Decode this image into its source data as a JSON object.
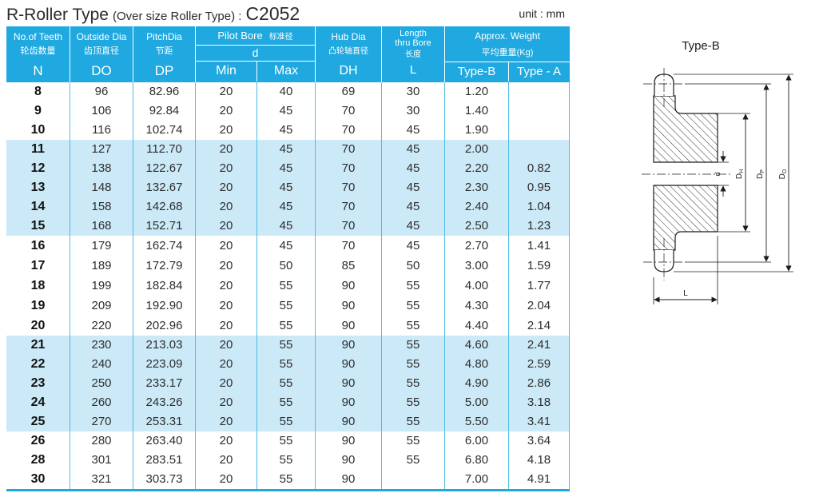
{
  "title": {
    "main": "R-Roller Type",
    "paren": "(Over size Roller Type) :",
    "code": "C2052",
    "unit": "unit : mm"
  },
  "colors": {
    "accent": "#1fa9e0",
    "grid_line": "#4dbce8",
    "row_shade": "#cbe9f7"
  },
  "table": {
    "column_keys": [
      "n",
      "do",
      "dp",
      "min",
      "max",
      "dh",
      "l",
      "type_b",
      "type_a"
    ],
    "headers": {
      "teeth": {
        "en": "No.of Teeth",
        "cn": "轮齿数量",
        "sym": "N"
      },
      "outside": {
        "en": "Outside Dia",
        "cn": "齿顶直径",
        "sym": "DO"
      },
      "pitch": {
        "en": "PitchDia",
        "cn": "节距",
        "sym": "DP"
      },
      "pilot": {
        "en": "Pilot Bore",
        "cn": "标准径",
        "sub": "d",
        "min": "Min",
        "max": "Max"
      },
      "hub": {
        "en": "Hub Dia",
        "cn": "凸轮轴直径",
        "sym": "DH"
      },
      "length": {
        "en1": "Length",
        "en2": "thru Bore",
        "cn": "长度",
        "sym": "L"
      },
      "weight": {
        "en": "Approx. Weight",
        "cn": "平均重量(Kg)",
        "type_b": "Type-B",
        "type_a": "Type - A"
      }
    },
    "groups": [
      {
        "shaded": false,
        "rows": [
          [
            "8",
            "96",
            "82.96",
            "20",
            "40",
            "69",
            "30",
            "1.20",
            ""
          ],
          [
            "9",
            "106",
            "92.84",
            "20",
            "45",
            "70",
            "30",
            "1.40",
            ""
          ],
          [
            "10",
            "116",
            "102.74",
            "20",
            "45",
            "70",
            "45",
            "1.90",
            ""
          ]
        ]
      },
      {
        "shaded": true,
        "rows": [
          [
            "11",
            "127",
            "112.70",
            "20",
            "45",
            "70",
            "45",
            "2.00",
            ""
          ],
          [
            "12",
            "138",
            "122.67",
            "20",
            "45",
            "70",
            "45",
            "2.20",
            "0.82"
          ],
          [
            "13",
            "148",
            "132.67",
            "20",
            "45",
            "70",
            "45",
            "2.30",
            "0.95"
          ],
          [
            "14",
            "158",
            "142.68",
            "20",
            "45",
            "70",
            "45",
            "2.40",
            "1.04"
          ],
          [
            "15",
            "168",
            "152.71",
            "20",
            "45",
            "70",
            "45",
            "2.50",
            "1.23"
          ]
        ]
      },
      {
        "shaded": false,
        "rows": [
          [
            "16",
            "179",
            "162.74",
            "20",
            "45",
            "70",
            "45",
            "2.70",
            "1.41"
          ],
          [
            "17",
            "189",
            "172.79",
            "20",
            "50",
            "85",
            "50",
            "3.00",
            "1.59"
          ],
          [
            "18",
            "199",
            "182.84",
            "20",
            "55",
            "90",
            "55",
            "4.00",
            "1.77"
          ],
          [
            "19",
            "209",
            "192.90",
            "20",
            "55",
            "90",
            "55",
            "4.30",
            "2.04"
          ],
          [
            "20",
            "220",
            "202.96",
            "20",
            "55",
            "90",
            "55",
            "4.40",
            "2.14"
          ]
        ]
      },
      {
        "shaded": true,
        "rows": [
          [
            "21",
            "230",
            "213.03",
            "20",
            "55",
            "90",
            "55",
            "4.60",
            "2.41"
          ],
          [
            "22",
            "240",
            "223.09",
            "20",
            "55",
            "90",
            "55",
            "4.80",
            "2.59"
          ],
          [
            "23",
            "250",
            "233.17",
            "20",
            "55",
            "90",
            "55",
            "4.90",
            "2.86"
          ],
          [
            "24",
            "260",
            "243.26",
            "20",
            "55",
            "90",
            "55",
            "5.00",
            "3.18"
          ],
          [
            "25",
            "270",
            "253.31",
            "20",
            "55",
            "90",
            "55",
            "5.50",
            "3.41"
          ]
        ]
      },
      {
        "shaded": false,
        "rows": [
          [
            "26",
            "280",
            "263.40",
            "20",
            "55",
            "90",
            "55",
            "6.00",
            "3.64"
          ],
          [
            "28",
            "301",
            "283.51",
            "20",
            "55",
            "90",
            "55",
            "6.80",
            "4.18"
          ],
          [
            "30",
            "321",
            "303.73",
            "20",
            "55",
            "90",
            "",
            "7.00",
            "4.91"
          ]
        ]
      }
    ]
  },
  "drawing": {
    "title": "Type-B",
    "dims": {
      "d": "d",
      "dh": "DH",
      "dp": "DP",
      "do": "DO",
      "l": "L"
    }
  }
}
